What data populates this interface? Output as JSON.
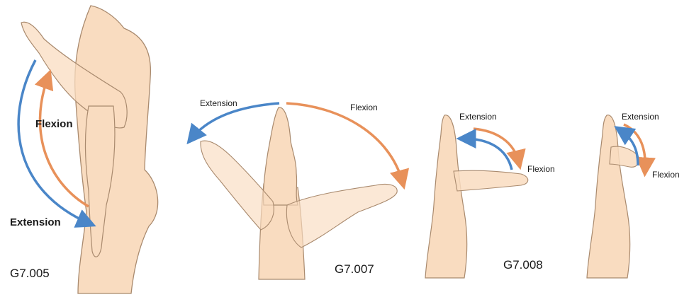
{
  "colors": {
    "skin_fill": "#f9dcc0",
    "skin_stroke": "#a98a6e",
    "flexion_arrow": "#e8915a",
    "extension_arrow": "#4a86c8"
  },
  "figures": [
    {
      "id": "G7.005",
      "labels": {
        "flexion": "Flexion",
        "extension": "Extension"
      }
    },
    {
      "id": "G7.007",
      "labels": {
        "extension": "Extension",
        "flexion": "Flexion"
      }
    },
    {
      "id": "G7.008",
      "labels": {
        "extension": "Extension",
        "flexion": "Flexion"
      }
    },
    {
      "id": "",
      "labels": {
        "extension": "Extension",
        "flexion": "Flexion"
      }
    }
  ]
}
